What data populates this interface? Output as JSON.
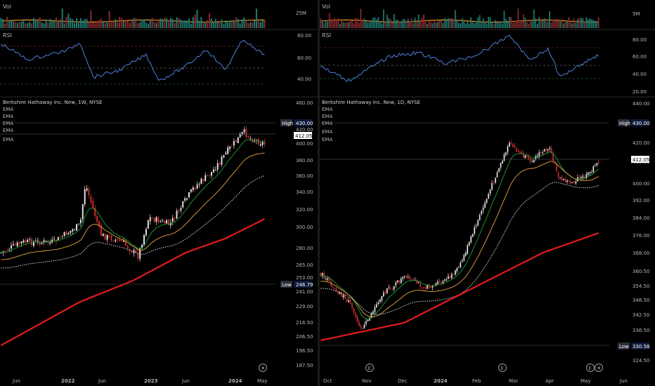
{
  "panes": [
    {
      "title": "Berkshire Hathaway Inc. New, 1W, NYSE",
      "ema_labels": [
        "EMA",
        "EMA",
        "EMA",
        "EMA",
        "EMA"
      ],
      "vol_label": "Vol",
      "vol_tick": "25M",
      "rsi_label": "RSI",
      "rsi_ticks": [
        "80.00",
        "60.00",
        "40.00"
      ],
      "price_ticks": [
        "460.00",
        "420.00",
        "400.00",
        "380.00",
        "360.00",
        "340.00",
        "320.00",
        "300.00",
        "280.00",
        "265.00",
        "253.00",
        "241.00",
        "229.00",
        "216.50",
        "206.50",
        "196.50",
        "187.50"
      ],
      "high_label": "High",
      "high_value": "430.00",
      "low_label": "Low",
      "low_value": "246.79",
      "last_value": "412.05",
      "x_labels": [
        "Jun",
        "2022",
        "Jun",
        "2023",
        "Jun",
        "2024",
        "May"
      ],
      "events": [
        "flash-icon"
      ]
    },
    {
      "title": "Berkshire Hathaway Inc. New, 1D, NYSE",
      "ema_labels": [
        "EMA",
        "EMA",
        "EMA",
        "EMA",
        "EMA"
      ],
      "vol_label": "Vol",
      "vol_tick": "5M",
      "rsi_label": "RSI",
      "rsi_ticks": [
        "80.00",
        "60.00",
        "40.00",
        "20.00"
      ],
      "price_ticks": [
        "440.00",
        "420.00",
        "410.00",
        "400.00",
        "392.00",
        "384.00",
        "376.00",
        "368.00",
        "360.50",
        "354.50",
        "348.50",
        "342.50",
        "336.50",
        "330.58",
        "324.50"
      ],
      "high_label": "High",
      "high_value": "430.00",
      "low_label": "Low",
      "low_value": "330.58",
      "last_value": "412.05",
      "x_labels": [
        "Oct",
        "Nov",
        "Dec",
        "2024",
        "Feb",
        "Mar",
        "Apr",
        "May",
        "Jun"
      ],
      "events": [
        "earnings-icon",
        "earnings-icon",
        "earnings-icon",
        "flash-icon"
      ]
    }
  ],
  "colors": {
    "up": "#e8e8e8",
    "down": "#d32f2f",
    "ema_green": "#1b9e3a",
    "ema_orange": "#e8a341",
    "ema_white": "#d9d9d9",
    "ema_red": "#e31b1b",
    "rsi": "#4f7fe0",
    "vol_line": "#f29b25",
    "label_bg": "#2a2e39",
    "badge_bg": "#0f1a3c"
  }
}
